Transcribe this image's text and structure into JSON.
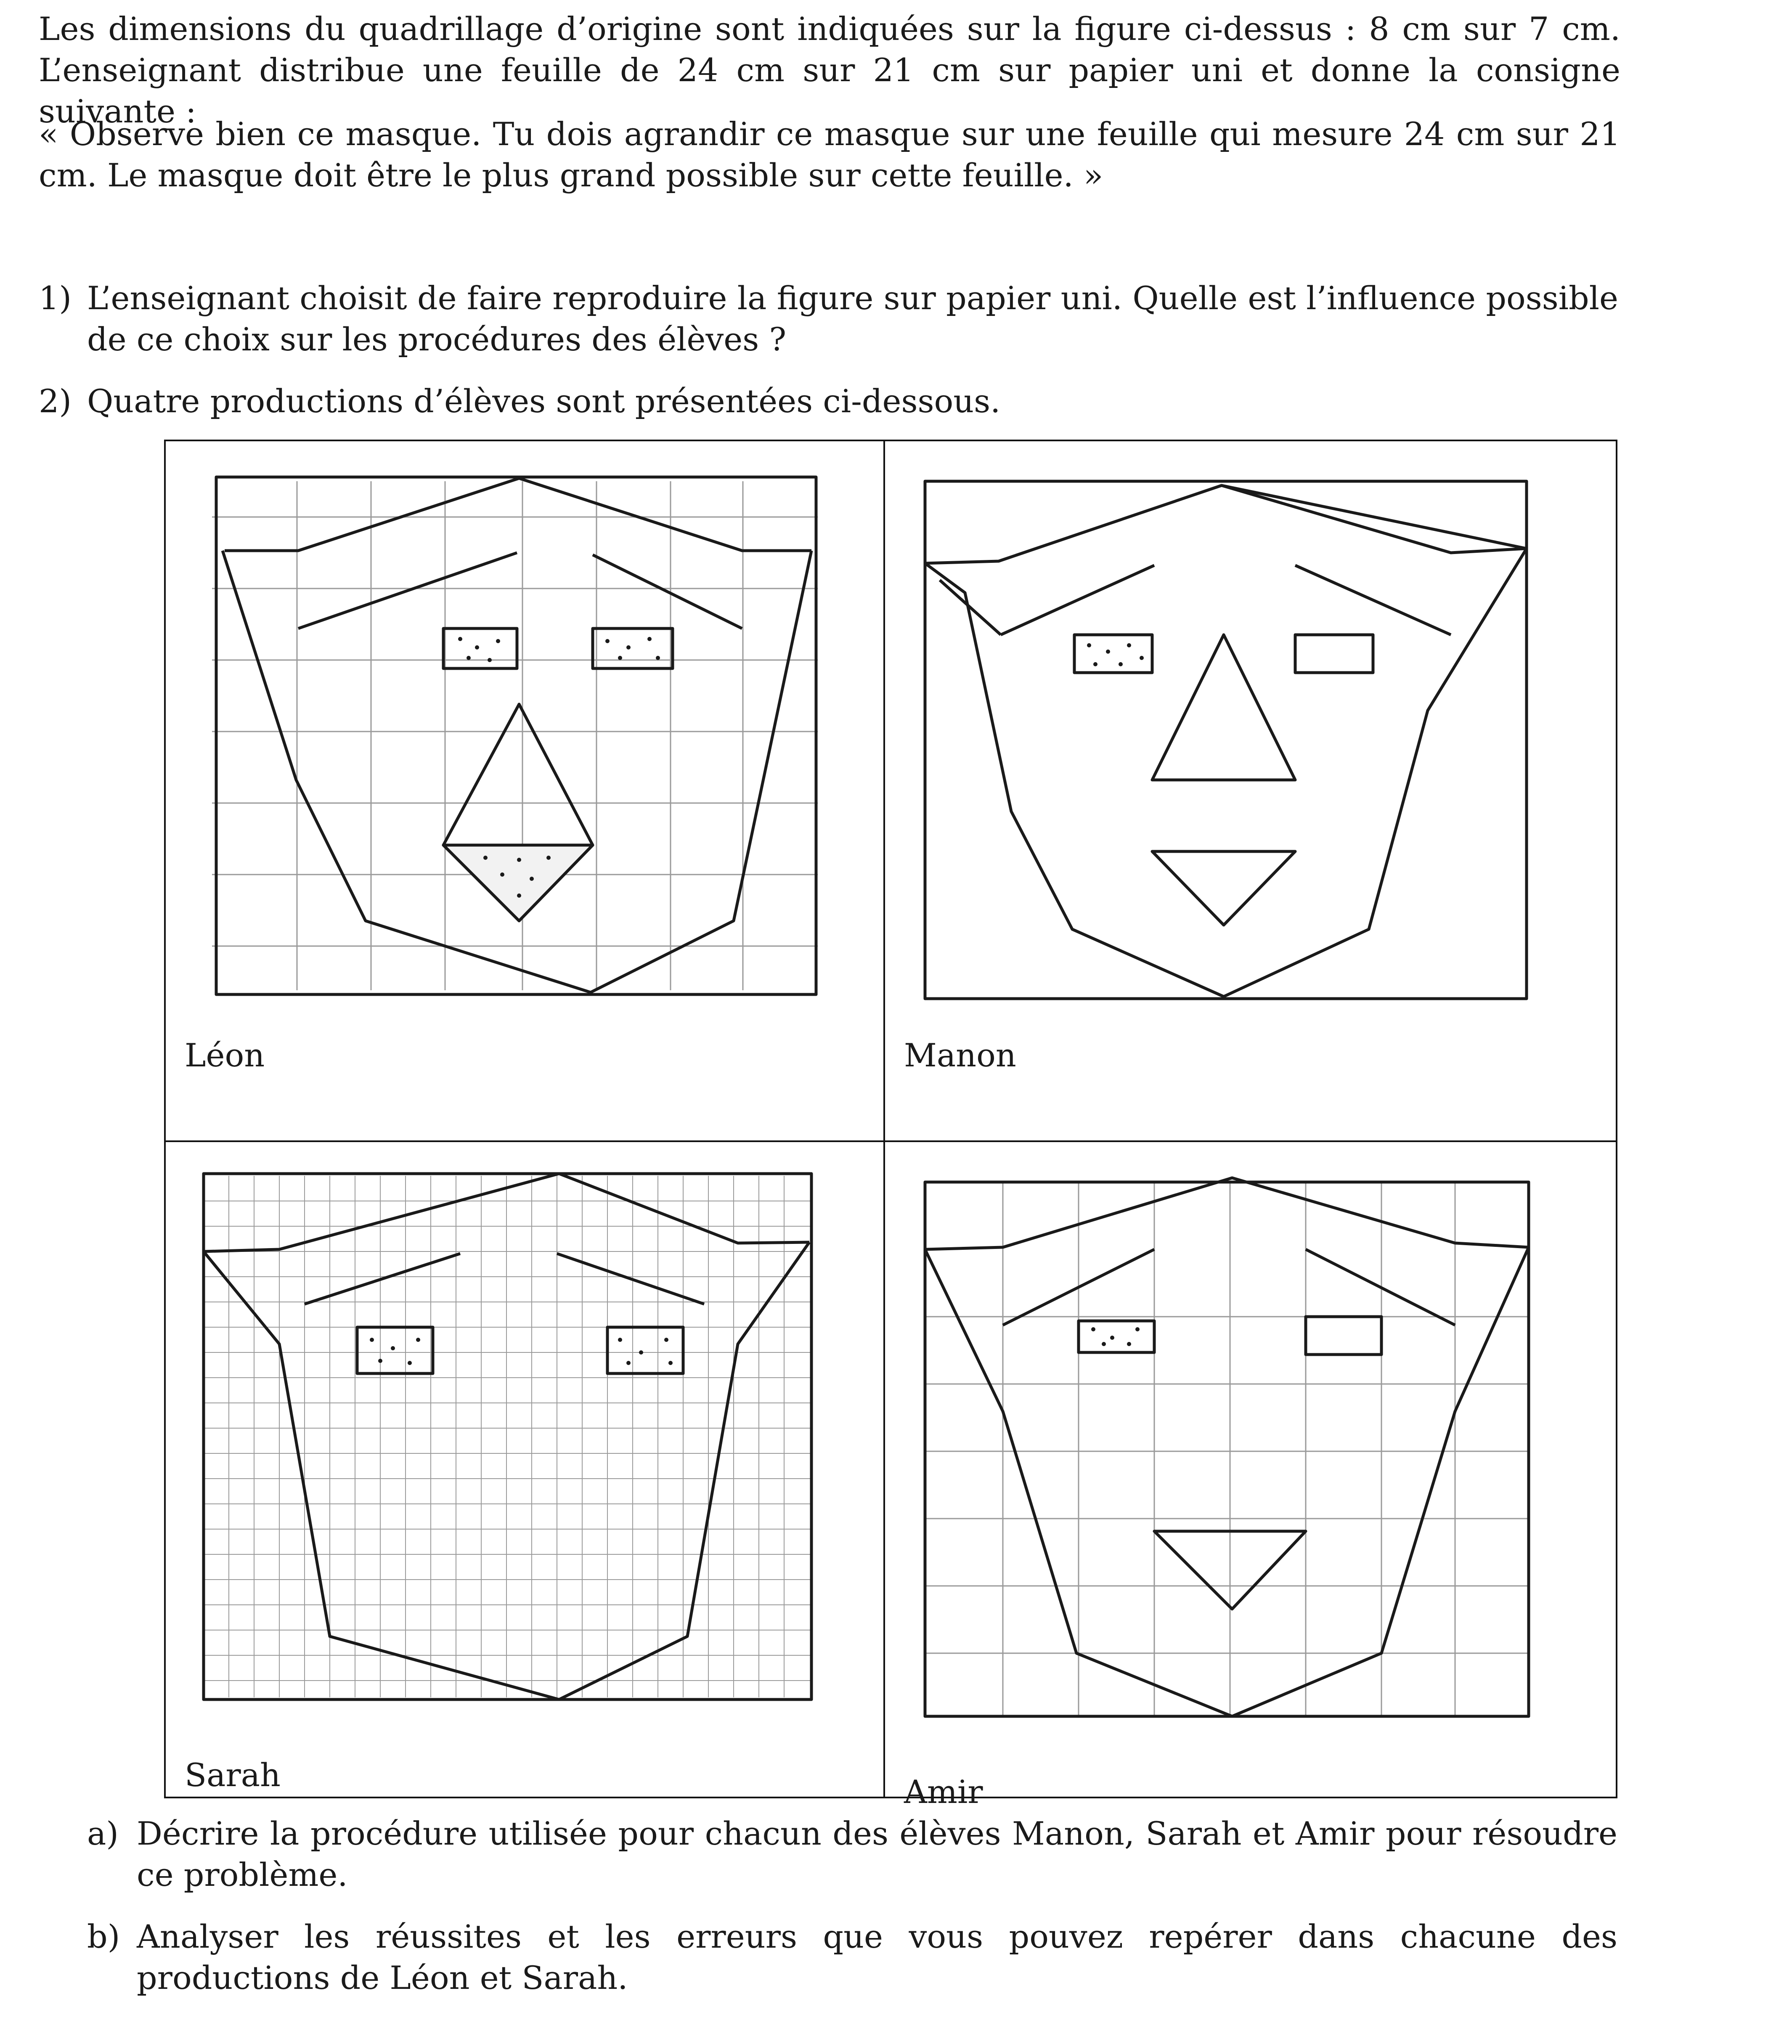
{
  "intro": "Les dimensions du quadrillage d’origine sont indiquées sur la figure ci-dessus : 8 cm sur 7 cm. L’enseignant distribue une feuille de 24 cm sur 21 cm sur papier uni et donne la consigne suivante :",
  "quote": "« Observe bien ce masque. Tu dois agrandir ce masque sur une feuille qui mesure 24 cm sur 21 cm. Le masque doit être le plus grand possible sur cette feuille. »",
  "questions": [
    {
      "num": "1)",
      "text": "L’enseignant choisit de faire reproduire la figure sur papier uni. Quelle est l’influence possible de ce choix sur les procédures des élèves ?"
    },
    {
      "num": "2)",
      "text": "Quatre productions d’élèves sont présentées ci-dessous."
    }
  ],
  "productions": [
    {
      "name": "Léon"
    },
    {
      "name": "Manon"
    },
    {
      "name": "Sarah"
    },
    {
      "name": "Amir"
    }
  ],
  "subquestions": [
    {
      "num": "a)",
      "text": "Décrire la procédure utilisée pour chacun des élèves Manon, Sarah et Amir pour résoudre ce problème."
    },
    {
      "num": "b)",
      "text": "Analyser les réussites et les erreurs que vous pouvez repérer dans chacune des productions de Léon et Sarah."
    }
  ],
  "colors": {
    "ink": "#1a1a1a",
    "grid": "#9a9a9a"
  }
}
